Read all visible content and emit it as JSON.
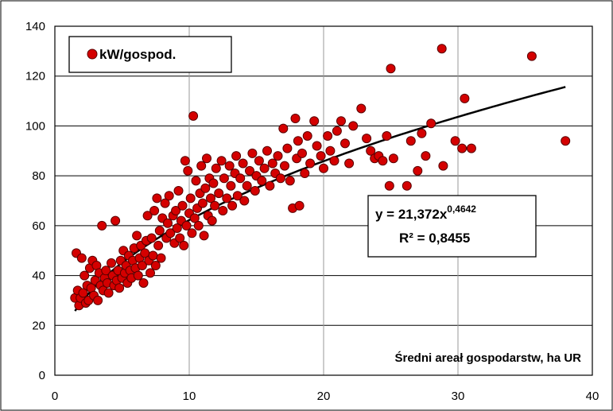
{
  "chart_data": {
    "type": "scatter",
    "title": "",
    "xlabel": "Średni areał gospodarstw, ha UR",
    "ylabel": "",
    "xlim": [
      0,
      40
    ],
    "ylim": [
      0,
      140
    ],
    "x_ticks": [
      "0",
      "10",
      "20",
      "30",
      "40"
    ],
    "y_ticks": [
      "0",
      "20",
      "40",
      "60",
      "80",
      "100",
      "120",
      "140"
    ],
    "grid": true,
    "legend_position": "top-left",
    "marker_color": "#d40000",
    "trend_color": "#000000",
    "series": [
      {
        "name": "kW/gospod.",
        "points": [
          [
            1.5,
            31
          ],
          [
            1.6,
            49
          ],
          [
            1.7,
            34
          ],
          [
            1.8,
            28
          ],
          [
            1.9,
            31
          ],
          [
            2.0,
            47
          ],
          [
            2.1,
            33
          ],
          [
            2.2,
            40
          ],
          [
            2.3,
            29
          ],
          [
            2.4,
            36
          ],
          [
            2.5,
            30
          ],
          [
            2.6,
            43
          ],
          [
            2.7,
            35
          ],
          [
            2.8,
            46
          ],
          [
            2.9,
            32
          ],
          [
            3.0,
            38
          ],
          [
            3.1,
            44
          ],
          [
            3.2,
            30
          ],
          [
            3.3,
            41
          ],
          [
            3.4,
            36
          ],
          [
            3.5,
            60
          ],
          [
            3.6,
            34
          ],
          [
            3.7,
            39
          ],
          [
            3.8,
            42
          ],
          [
            3.9,
            37
          ],
          [
            4.0,
            33
          ],
          [
            4.2,
            45
          ],
          [
            4.3,
            40
          ],
          [
            4.4,
            36
          ],
          [
            4.5,
            62
          ],
          [
            4.6,
            38
          ],
          [
            4.7,
            42
          ],
          [
            4.8,
            35
          ],
          [
            4.9,
            46
          ],
          [
            5.0,
            39
          ],
          [
            5.1,
            50
          ],
          [
            5.2,
            41
          ],
          [
            5.3,
            44
          ],
          [
            5.4,
            37
          ],
          [
            5.5,
            48
          ],
          [
            5.6,
            42
          ],
          [
            5.7,
            39
          ],
          [
            5.8,
            46
          ],
          [
            5.9,
            51
          ],
          [
            6.0,
            43
          ],
          [
            6.1,
            56
          ],
          [
            6.2,
            40
          ],
          [
            6.3,
            47
          ],
          [
            6.4,
            52
          ],
          [
            6.5,
            44
          ],
          [
            6.6,
            37
          ],
          [
            6.7,
            49
          ],
          [
            6.8,
            54
          ],
          [
            6.9,
            64
          ],
          [
            7.0,
            46
          ],
          [
            7.1,
            41
          ],
          [
            7.2,
            55
          ],
          [
            7.3,
            48
          ],
          [
            7.4,
            66
          ],
          [
            7.5,
            44
          ],
          [
            7.6,
            71
          ],
          [
            7.7,
            52
          ],
          [
            7.8,
            58
          ],
          [
            7.9,
            47
          ],
          [
            8.0,
            63
          ],
          [
            8.2,
            69
          ],
          [
            8.3,
            55
          ],
          [
            8.4,
            61
          ],
          [
            8.5,
            72
          ],
          [
            8.6,
            57
          ],
          [
            8.8,
            64
          ],
          [
            8.9,
            53
          ],
          [
            9.0,
            66
          ],
          [
            9.1,
            59
          ],
          [
            9.2,
            74
          ],
          [
            9.3,
            55
          ],
          [
            9.4,
            62
          ],
          [
            9.5,
            68
          ],
          [
            9.6,
            52
          ],
          [
            9.7,
            86
          ],
          [
            9.8,
            60
          ],
          [
            9.9,
            82
          ],
          [
            10.0,
            65
          ],
          [
            10.1,
            71
          ],
          [
            10.2,
            57
          ],
          [
            10.3,
            104
          ],
          [
            10.4,
            63
          ],
          [
            10.5,
            78
          ],
          [
            10.6,
            67
          ],
          [
            10.7,
            60
          ],
          [
            10.8,
            73
          ],
          [
            10.9,
            84
          ],
          [
            11.0,
            69
          ],
          [
            11.1,
            56
          ],
          [
            11.2,
            75
          ],
          [
            11.3,
            87
          ],
          [
            11.4,
            64
          ],
          [
            11.5,
            79
          ],
          [
            11.6,
            71
          ],
          [
            11.7,
            62
          ],
          [
            11.8,
            77
          ],
          [
            11.9,
            68
          ],
          [
            12.0,
            83
          ],
          [
            12.2,
            73
          ],
          [
            12.4,
            86
          ],
          [
            12.5,
            66
          ],
          [
            12.6,
            79
          ],
          [
            12.8,
            71
          ],
          [
            13.0,
            84
          ],
          [
            13.1,
            76
          ],
          [
            13.2,
            68
          ],
          [
            13.4,
            81
          ],
          [
            13.5,
            88
          ],
          [
            13.6,
            72
          ],
          [
            13.8,
            79
          ],
          [
            14.0,
            85
          ],
          [
            14.1,
            70
          ],
          [
            14.3,
            76
          ],
          [
            14.5,
            82
          ],
          [
            14.7,
            89
          ],
          [
            14.9,
            74
          ],
          [
            15.0,
            80
          ],
          [
            15.2,
            86
          ],
          [
            15.4,
            78
          ],
          [
            15.6,
            83
          ],
          [
            15.8,
            90
          ],
          [
            16.0,
            76
          ],
          [
            16.2,
            85
          ],
          [
            16.4,
            81
          ],
          [
            16.6,
            88
          ],
          [
            16.8,
            79
          ],
          [
            17.0,
            99
          ],
          [
            17.1,
            84
          ],
          [
            17.3,
            91
          ],
          [
            17.5,
            78
          ],
          [
            17.7,
            67
          ],
          [
            17.9,
            103
          ],
          [
            18.0,
            87
          ],
          [
            18.1,
            94
          ],
          [
            18.2,
            68
          ],
          [
            18.4,
            89
          ],
          [
            18.6,
            81
          ],
          [
            18.8,
            96
          ],
          [
            19.0,
            85
          ],
          [
            19.3,
            102
          ],
          [
            19.5,
            92
          ],
          [
            19.8,
            88
          ],
          [
            20.0,
            83
          ],
          [
            20.3,
            96
          ],
          [
            20.5,
            90
          ],
          [
            20.8,
            86
          ],
          [
            21.0,
            98
          ],
          [
            21.3,
            102
          ],
          [
            21.6,
            93
          ],
          [
            21.9,
            85
          ],
          [
            22.2,
            100
          ],
          [
            22.8,
            107
          ],
          [
            23.2,
            95
          ],
          [
            23.5,
            90
          ],
          [
            23.8,
            87
          ],
          [
            24.1,
            88
          ],
          [
            24.4,
            86
          ],
          [
            24.7,
            96
          ],
          [
            24.9,
            76
          ],
          [
            25.0,
            123
          ],
          [
            25.2,
            87
          ],
          [
            26.2,
            76
          ],
          [
            26.5,
            94
          ],
          [
            27.0,
            82
          ],
          [
            27.3,
            97
          ],
          [
            27.6,
            88
          ],
          [
            28.0,
            101
          ],
          [
            28.8,
            131
          ],
          [
            28.9,
            84
          ],
          [
            29.8,
            94
          ],
          [
            30.3,
            91
          ],
          [
            30.5,
            111
          ],
          [
            31.0,
            91
          ],
          [
            35.5,
            128
          ],
          [
            38.0,
            94
          ]
        ]
      }
    ],
    "trendline": {
      "type": "power",
      "a": 21.372,
      "b": 0.4642,
      "x_range": [
        1.5,
        38
      ],
      "equation_label": "y = 21,372x",
      "equation_exponent": "0,4642",
      "r2_label": "R² = 0,8455"
    }
  }
}
